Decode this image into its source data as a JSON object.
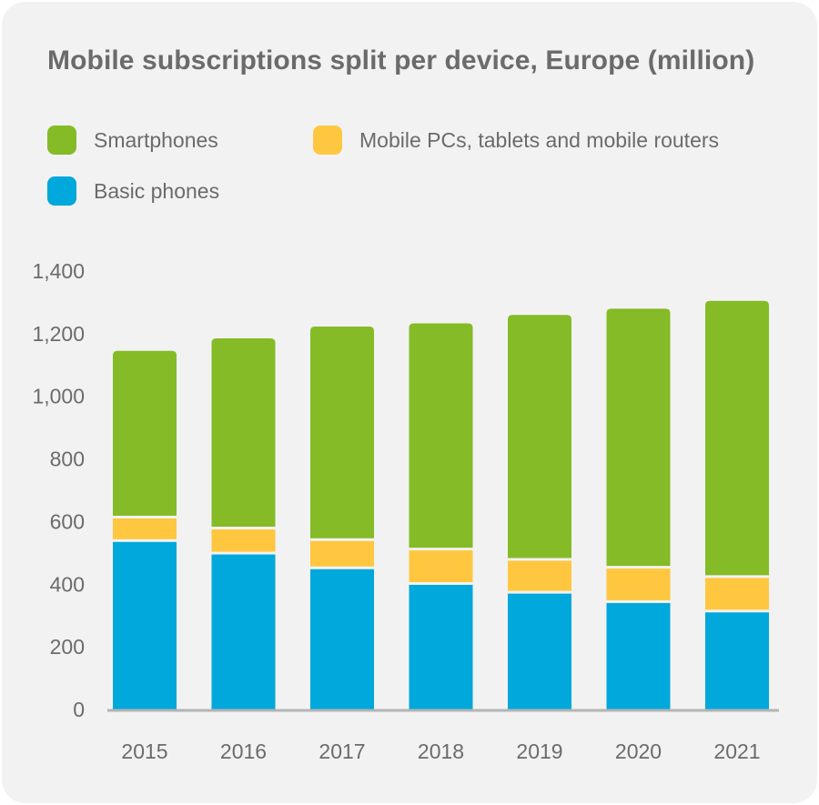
{
  "title": "Mobile subscriptions split per device, Europe (million)",
  "legend": [
    {
      "label": "Smartphones",
      "color": "#84bb26"
    },
    {
      "label": "Mobile PCs, tablets and mobile routers",
      "color": "#fec73f"
    },
    {
      "label": "Basic phones",
      "color": "#00a8db"
    }
  ],
  "chart_data": {
    "type": "bar",
    "stacked": true,
    "title": "Mobile subscriptions split per device, Europe (million)",
    "categories": [
      "2015",
      "2016",
      "2017",
      "2018",
      "2019",
      "2020",
      "2021"
    ],
    "series": [
      {
        "name": "Basic phones",
        "color": "#00a8db",
        "values": [
          535,
          495,
          448,
          398,
          370,
          340,
          310
        ]
      },
      {
        "name": "Mobile PCs, tablets and mobile routers",
        "color": "#fec73f",
        "values": [
          75,
          80,
          90,
          110,
          105,
          110,
          110
        ]
      },
      {
        "name": "Smartphones",
        "color": "#84bb26",
        "values": [
          535,
          610,
          685,
          725,
          785,
          830,
          885
        ]
      }
    ],
    "ylim": [
      0,
      1400
    ],
    "yticks": [
      0,
      200,
      400,
      600,
      800,
      1000,
      1200,
      1400
    ],
    "ytick_labels": [
      "0",
      "200",
      "400",
      "600",
      "800",
      "1,000",
      "1,200",
      "1,400"
    ],
    "grid": false,
    "legend_position": "top-left",
    "axis_color": "#b4b4b4"
  }
}
